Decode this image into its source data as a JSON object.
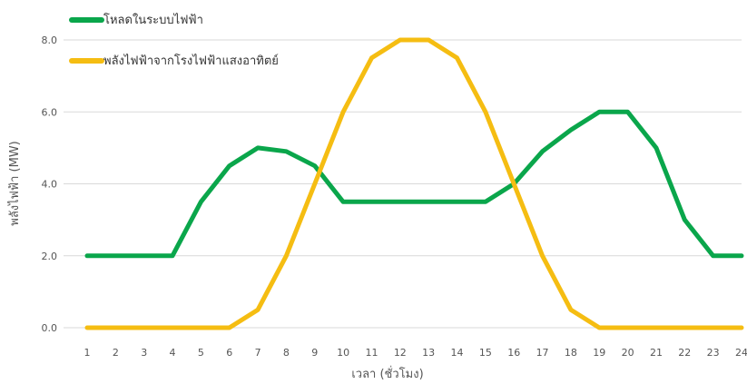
{
  "chart_data": {
    "type": "line",
    "title": "",
    "xlabel": "เวลา (ชั่วโมง)",
    "ylabel": "พลังไฟฟ้า (MW)",
    "categories": [
      "1",
      "2",
      "3",
      "4",
      "5",
      "6",
      "7",
      "8",
      "9",
      "10",
      "11",
      "12",
      "13",
      "14",
      "15",
      "16",
      "17",
      "18",
      "19",
      "20",
      "21",
      "22",
      "23",
      "24"
    ],
    "yticks": [
      "0.0",
      "2.0",
      "4.0",
      "6.0",
      "8.0"
    ],
    "ylim": [
      0,
      8
    ],
    "grid": true,
    "legend_position": "top-left",
    "series": [
      {
        "name": "โหลดในระบบไฟฟ้า",
        "color": "#0aa64b",
        "values": [
          2,
          2,
          2,
          2,
          3.5,
          4.5,
          5,
          4.9,
          4.5,
          3.5,
          3.5,
          3.5,
          3.5,
          3.5,
          3.5,
          4,
          4.9,
          5.5,
          6,
          6,
          5,
          3,
          2,
          2
        ]
      },
      {
        "name": "พลังไฟฟ้าจากโรงไฟฟ้าแสงอาทิตย์",
        "color": "#f5bd12",
        "values": [
          0,
          0,
          0,
          0,
          0,
          0,
          0.5,
          2,
          4,
          6,
          7.5,
          8,
          8,
          7.5,
          6,
          4,
          2,
          0.5,
          0,
          0,
          0,
          0,
          0,
          0
        ]
      }
    ]
  }
}
